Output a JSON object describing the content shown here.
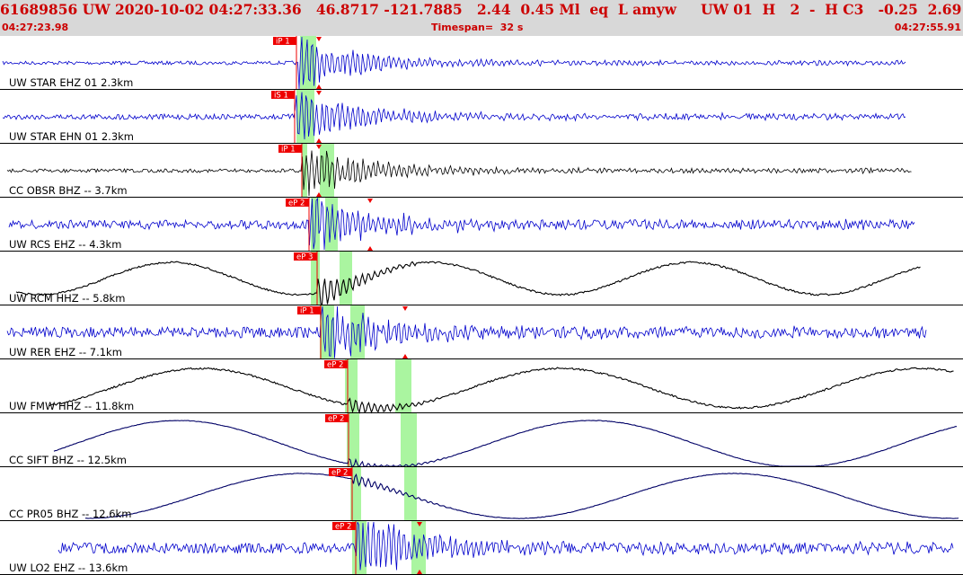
{
  "header": {
    "event_line": "61689856 UW 2020-10-02 04:27:33.36   46.8717 -121.7885   2.44  0.45 Ml  eq  L amyw     UW 01  H   2  -  H C3   -0.25  2.69",
    "start_time": "04:27:23.98",
    "timespan": "Timespan=  32 s",
    "end_time": "04:27:55.91"
  },
  "colors": {
    "header_bg": "#d8d8d8",
    "header_text": "#cc0000",
    "pick": "#ee0000",
    "window": "#aaf5a0",
    "trace_blue": "#0000cc",
    "trace_black": "#000000",
    "trace_navy": "#000066"
  },
  "channels": [
    {
      "label": "UW STAR EHZ 01 2.3km",
      "pick": "iP 1",
      "color": "blue",
      "waveform": "short-period"
    },
    {
      "label": "UW STAR EHN 01 2.3km",
      "pick": "iS 1",
      "color": "blue",
      "waveform": "short-period"
    },
    {
      "label": "CC OBSR BHZ -- 3.7km",
      "pick": "iP 1",
      "color": "black",
      "waveform": "short-period"
    },
    {
      "label": "UW RCS EHZ -- 4.3km",
      "pick": "eP 2",
      "color": "blue",
      "waveform": "short-period"
    },
    {
      "label": "UW RCM HHZ -- 5.8km",
      "pick": "eP 3",
      "color": "black",
      "waveform": "long-period"
    },
    {
      "label": "UW RER EHZ -- 7.1km",
      "pick": "iP 1",
      "color": "blue",
      "waveform": "short-period"
    },
    {
      "label": "UW FMW HHZ -- 11.8km",
      "pick": "eP 2",
      "color": "black",
      "waveform": "long-period"
    },
    {
      "label": "CC SIFT BHZ -- 12.5km",
      "pick": "eP 2",
      "color": "navy",
      "waveform": "long-period"
    },
    {
      "label": "CC PR05 BHZ -- 12.6km",
      "pick": "eP 2",
      "color": "navy",
      "waveform": "long-period"
    },
    {
      "label": "UW LO2 EHZ -- 13.6km",
      "pick": "eP 2",
      "color": "blue",
      "waveform": "short-period"
    }
  ]
}
